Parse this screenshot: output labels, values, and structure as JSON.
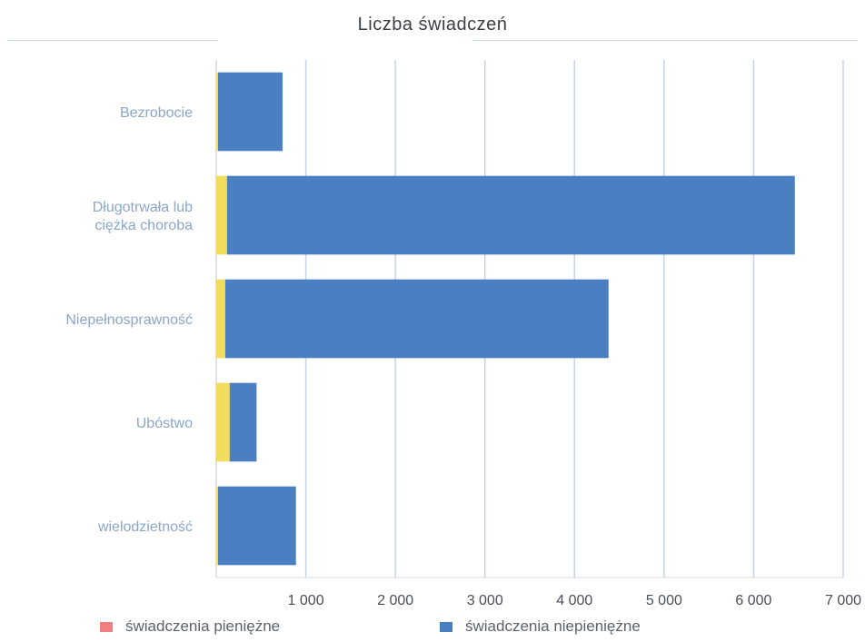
{
  "chart_data": {
    "type": "bar",
    "orientation": "horizontal",
    "stacked": true,
    "title": "Liczba świadczeń",
    "categories": [
      "Bezrobocie",
      "Długotrwała lub ciężka choroba",
      "Niepełnosprawność",
      "Ubóstwo",
      "wielodzietność"
    ],
    "series": [
      {
        "name": "świadczenia pieniężne",
        "color": "#f08080",
        "values": [
          20,
          120,
          100,
          150,
          20
        ]
      },
      {
        "name": "świadczenia niepieniężne",
        "color": "#4a7fc1",
        "values": [
          720,
          6340,
          4280,
          300,
          870
        ]
      }
    ],
    "xlim": [
      0,
      7000
    ],
    "xticks": [
      "1 000",
      "2 000",
      "3 000",
      "4 000",
      "5 000",
      "6 000",
      "7 000"
    ],
    "grid": true,
    "legend_position": "bottom"
  }
}
